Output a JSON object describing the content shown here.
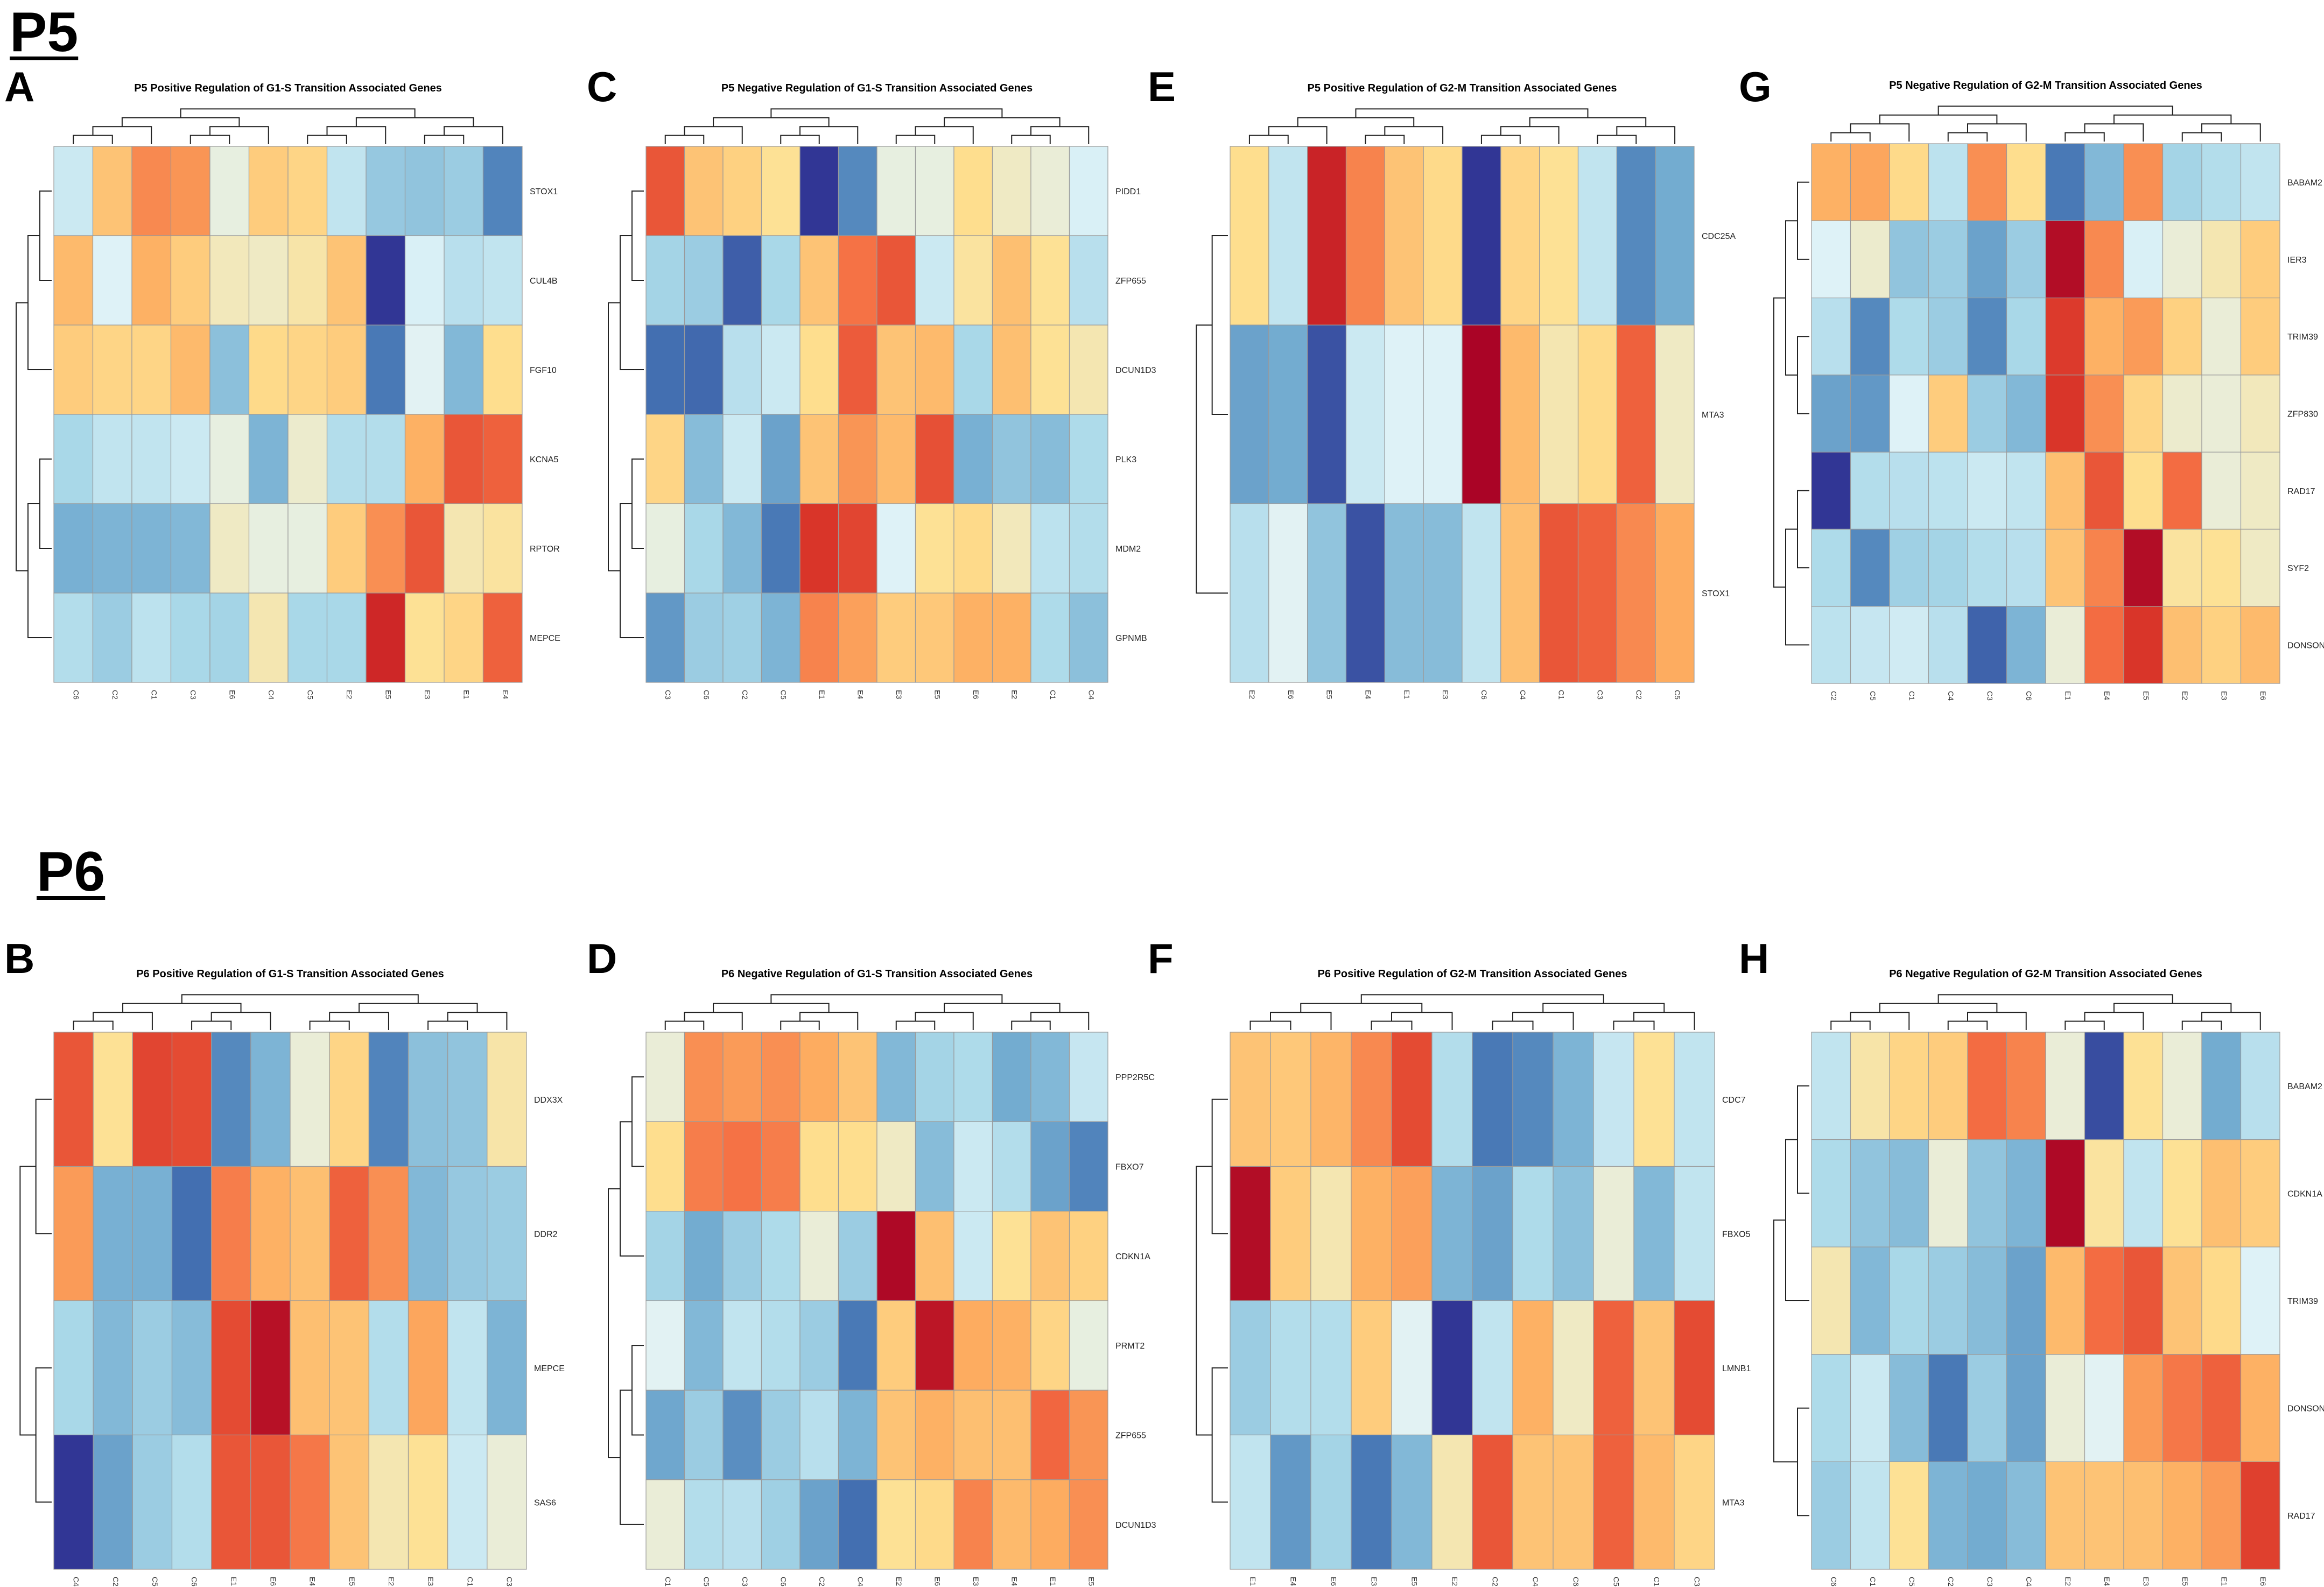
{
  "sections": [
    {
      "label": "P5"
    },
    {
      "label": "P6"
    }
  ],
  "palette": [
    "#313695",
    "#4575b4",
    "#74add1",
    "#abd9e9",
    "#e0f3f8",
    "#fee090",
    "#fdae61",
    "#f46d43",
    "#d73027",
    "#a50026"
  ],
  "chart_data": [
    {
      "type": "heatmap",
      "panel": "A",
      "title": "P5 Positive Regulation of G1-S Transition Associated Genes",
      "columns": [
        "C6",
        "C2",
        "C1",
        "C3",
        "E6",
        "C4",
        "C5",
        "E2",
        "E5",
        "E3",
        "E1",
        "E4"
      ],
      "rows": [
        "STOX1",
        "CUL4B",
        "FGF10",
        "KCNA5",
        "RPTOR",
        "MEPCE"
      ],
      "values": [
        [
          0.4,
          0.62,
          0.73,
          0.71,
          0.47,
          0.6,
          0.58,
          0.38,
          0.29,
          0.28,
          0.3,
          0.14
        ],
        [
          0.64,
          0.44,
          0.66,
          0.6,
          0.51,
          0.5,
          0.53,
          0.62,
          0.0,
          0.43,
          0.36,
          0.38
        ],
        [
          0.6,
          0.58,
          0.58,
          0.64,
          0.27,
          0.57,
          0.58,
          0.6,
          0.12,
          0.45,
          0.25,
          0.56
        ],
        [
          0.33,
          0.38,
          0.38,
          0.4,
          0.47,
          0.24,
          0.49,
          0.35,
          0.35,
          0.66,
          0.82,
          0.8
        ],
        [
          0.23,
          0.24,
          0.24,
          0.25,
          0.5,
          0.47,
          0.47,
          0.6,
          0.72,
          0.82,
          0.52,
          0.54
        ],
        [
          0.35,
          0.3,
          0.37,
          0.33,
          0.32,
          0.52,
          0.33,
          0.33,
          0.91,
          0.55,
          0.58,
          0.8
        ]
      ]
    },
    {
      "type": "heatmap",
      "panel": "C",
      "title": "P5 Negative Regulation of G1-S Transition Associated Genes",
      "columns": [
        "C3",
        "C6",
        "C2",
        "C5",
        "E1",
        "E4",
        "E3",
        "E5",
        "E6",
        "E2",
        "C1",
        "C4"
      ],
      "rows": [
        "PIDD1",
        "ZFP655",
        "DCUN1D3",
        "PLK3",
        "MDM2",
        "GPNMB"
      ],
      "values": [
        [
          0.82,
          0.62,
          0.59,
          0.55,
          0.0,
          0.15,
          0.47,
          0.47,
          0.56,
          0.5,
          0.48,
          0.43
        ],
        [
          0.32,
          0.3,
          0.07,
          0.33,
          0.62,
          0.77,
          0.82,
          0.4,
          0.54,
          0.63,
          0.55,
          0.36
        ],
        [
          0.1,
          0.09,
          0.36,
          0.4,
          0.56,
          0.81,
          0.62,
          0.64,
          0.33,
          0.63,
          0.55,
          0.52
        ],
        [
          0.58,
          0.26,
          0.4,
          0.2,
          0.62,
          0.71,
          0.64,
          0.83,
          0.23,
          0.28,
          0.26,
          0.34
        ],
        [
          0.47,
          0.33,
          0.25,
          0.12,
          0.88,
          0.85,
          0.44,
          0.55,
          0.57,
          0.51,
          0.37,
          0.35
        ],
        [
          0.18,
          0.3,
          0.31,
          0.24,
          0.74,
          0.69,
          0.6,
          0.61,
          0.66,
          0.66,
          0.34,
          0.27
        ]
      ]
    },
    {
      "type": "heatmap",
      "panel": "E",
      "title": "P5 Positive Regulation of G2-M Transition Associated Genes",
      "columns": [
        "E2",
        "E6",
        "E5",
        "E4",
        "E1",
        "E3",
        "C6",
        "C4",
        "C1",
        "C3",
        "C2",
        "C5"
      ],
      "rows": [
        "CDC25A",
        "MTA3",
        "STOX1"
      ],
      "values": [
        [
          0.56,
          0.38,
          0.92,
          0.74,
          0.62,
          0.57,
          0.0,
          0.58,
          0.55,
          0.38,
          0.15,
          0.22
        ],
        [
          0.2,
          0.22,
          0.05,
          0.4,
          0.44,
          0.44,
          0.99,
          0.64,
          0.52,
          0.57,
          0.8,
          0.5
        ],
        [
          0.36,
          0.45,
          0.28,
          0.05,
          0.26,
          0.26,
          0.38,
          0.63,
          0.82,
          0.8,
          0.73,
          0.67
        ]
      ]
    },
    {
      "type": "heatmap",
      "panel": "G",
      "title": "P5 Negative Regulation of G2-M Transition Associated Genes",
      "columns": [
        "C2",
        "C5",
        "C1",
        "C4",
        "C3",
        "C6",
        "E1",
        "E4",
        "E5",
        "E2",
        "E3",
        "E6"
      ],
      "rows": [
        "BABAM2",
        "IER3",
        "TRIM39",
        "ZFP830",
        "RAD17",
        "SYF2",
        "DONSON"
      ],
      "values": [
        [
          0.66,
          0.68,
          0.57,
          0.37,
          0.72,
          0.56,
          0.12,
          0.25,
          0.72,
          0.32,
          0.35,
          0.38
        ],
        [
          0.44,
          0.49,
          0.28,
          0.3,
          0.2,
          0.3,
          0.97,
          0.73,
          0.43,
          0.48,
          0.52,
          0.6
        ],
        [
          0.36,
          0.15,
          0.34,
          0.3,
          0.15,
          0.33,
          0.87,
          0.66,
          0.7,
          0.59,
          0.48,
          0.6
        ],
        [
          0.2,
          0.18,
          0.44,
          0.6,
          0.3,
          0.25,
          0.88,
          0.72,
          0.58,
          0.49,
          0.48,
          0.51
        ],
        [
          0.0,
          0.35,
          0.36,
          0.37,
          0.4,
          0.38,
          0.63,
          0.82,
          0.56,
          0.78,
          0.48,
          0.5
        ],
        [
          0.34,
          0.15,
          0.31,
          0.32,
          0.35,
          0.36,
          0.62,
          0.74,
          0.97,
          0.54,
          0.55,
          0.5
        ],
        [
          0.37,
          0.39,
          0.41,
          0.36,
          0.08,
          0.24,
          0.48,
          0.78,
          0.88,
          0.63,
          0.59,
          0.64
        ]
      ]
    },
    {
      "type": "heatmap",
      "panel": "B",
      "title": "P6 Positive Regulation of G1-S Transition Associated Genes",
      "columns": [
        "C4",
        "C2",
        "C5",
        "C6",
        "E1",
        "E6",
        "E4",
        "E5",
        "E2",
        "E3",
        "C1",
        "C3"
      ],
      "rows": [
        "DDX3X",
        "DDR2",
        "MEPCE",
        "SAS6"
      ],
      "values": [
        [
          0.82,
          0.55,
          0.85,
          0.84,
          0.15,
          0.24,
          0.48,
          0.58,
          0.14,
          0.27,
          0.28,
          0.53
        ],
        [
          0.7,
          0.23,
          0.23,
          0.1,
          0.75,
          0.66,
          0.63,
          0.8,
          0.72,
          0.25,
          0.29,
          0.3
        ],
        [
          0.33,
          0.25,
          0.3,
          0.26,
          0.84,
          0.96,
          0.63,
          0.62,
          0.35,
          0.68,
          0.38,
          0.24
        ],
        [
          0.0,
          0.2,
          0.3,
          0.35,
          0.82,
          0.82,
          0.76,
          0.62,
          0.52,
          0.55,
          0.4,
          0.48
        ]
      ]
    },
    {
      "type": "heatmap",
      "panel": "D",
      "title": "P6 Negative Regulation of G1-S Transition Associated Genes",
      "columns": [
        "C1",
        "C5",
        "C3",
        "C6",
        "C2",
        "C4",
        "E2",
        "E6",
        "E3",
        "E4",
        "E1",
        "E5"
      ],
      "rows": [
        "PPP2R5C",
        "FBXO7",
        "CDKN1A",
        "PRMT2",
        "ZFP655",
        "DCUN1D3"
      ],
      "values": [
        [
          0.48,
          0.72,
          0.7,
          0.72,
          0.67,
          0.62,
          0.25,
          0.32,
          0.34,
          0.22,
          0.25,
          0.39
        ],
        [
          0.56,
          0.75,
          0.77,
          0.75,
          0.56,
          0.56,
          0.5,
          0.26,
          0.4,
          0.35,
          0.2,
          0.14
        ],
        [
          0.32,
          0.22,
          0.3,
          0.34,
          0.48,
          0.3,
          0.98,
          0.63,
          0.4,
          0.55,
          0.62,
          0.59
        ],
        [
          0.45,
          0.25,
          0.38,
          0.35,
          0.3,
          0.12,
          0.6,
          0.95,
          0.67,
          0.66,
          0.58,
          0.47
        ],
        [
          0.21,
          0.3,
          0.16,
          0.3,
          0.36,
          0.24,
          0.62,
          0.66,
          0.63,
          0.63,
          0.79,
          0.71
        ],
        [
          0.48,
          0.35,
          0.36,
          0.31,
          0.2,
          0.1,
          0.55,
          0.57,
          0.74,
          0.64,
          0.67,
          0.72
        ]
      ]
    },
    {
      "type": "heatmap",
      "panel": "F",
      "title": "P6 Positive Regulation of G2-M Transition Associated Genes",
      "columns": [
        "E1",
        "E4",
        "E6",
        "E3",
        "E5",
        "E2",
        "C2",
        "C4",
        "C6",
        "C5",
        "C1",
        "C3"
      ],
      "rows": [
        "CDC7",
        "FBXO5",
        "LMNB1",
        "MTA3"
      ],
      "values": [
        [
          0.62,
          0.61,
          0.65,
          0.73,
          0.84,
          0.35,
          0.12,
          0.15,
          0.24,
          0.39,
          0.55,
          0.38
        ],
        [
          0.97,
          0.6,
          0.52,
          0.66,
          0.69,
          0.24,
          0.2,
          0.34,
          0.27,
          0.48,
          0.25,
          0.38
        ],
        [
          0.3,
          0.35,
          0.35,
          0.6,
          0.45,
          0.0,
          0.38,
          0.66,
          0.5,
          0.8,
          0.62,
          0.84
        ],
        [
          0.38,
          0.18,
          0.32,
          0.12,
          0.25,
          0.52,
          0.82,
          0.62,
          0.62,
          0.8,
          0.64,
          0.58
        ]
      ]
    },
    {
      "type": "heatmap",
      "panel": "H",
      "title": "P6 Negative Regulation of G2-M Transition Associated Genes",
      "columns": [
        "C6",
        "C1",
        "C5",
        "C2",
        "C3",
        "C4",
        "E2",
        "E4",
        "E3",
        "E5",
        "E1",
        "E6"
      ],
      "rows": [
        "BABAM2",
        "CDKN1A",
        "TRIM39",
        "DONSON",
        "RAD17"
      ],
      "values": [
        [
          0.38,
          0.53,
          0.58,
          0.6,
          0.78,
          0.74,
          0.48,
          0.04,
          0.55,
          0.48,
          0.22,
          0.36
        ],
        [
          0.34,
          0.28,
          0.26,
          0.48,
          0.28,
          0.24,
          0.98,
          0.54,
          0.38,
          0.55,
          0.63,
          0.6
        ],
        [
          0.52,
          0.25,
          0.33,
          0.3,
          0.26,
          0.2,
          0.64,
          0.78,
          0.82,
          0.62,
          0.57,
          0.44
        ],
        [
          0.34,
          0.4,
          0.26,
          0.12,
          0.3,
          0.2,
          0.48,
          0.45,
          0.7,
          0.76,
          0.8,
          0.66
        ],
        [
          0.3,
          0.38,
          0.55,
          0.24,
          0.22,
          0.26,
          0.62,
          0.62,
          0.63,
          0.66,
          0.7,
          0.86
        ]
      ]
    }
  ]
}
